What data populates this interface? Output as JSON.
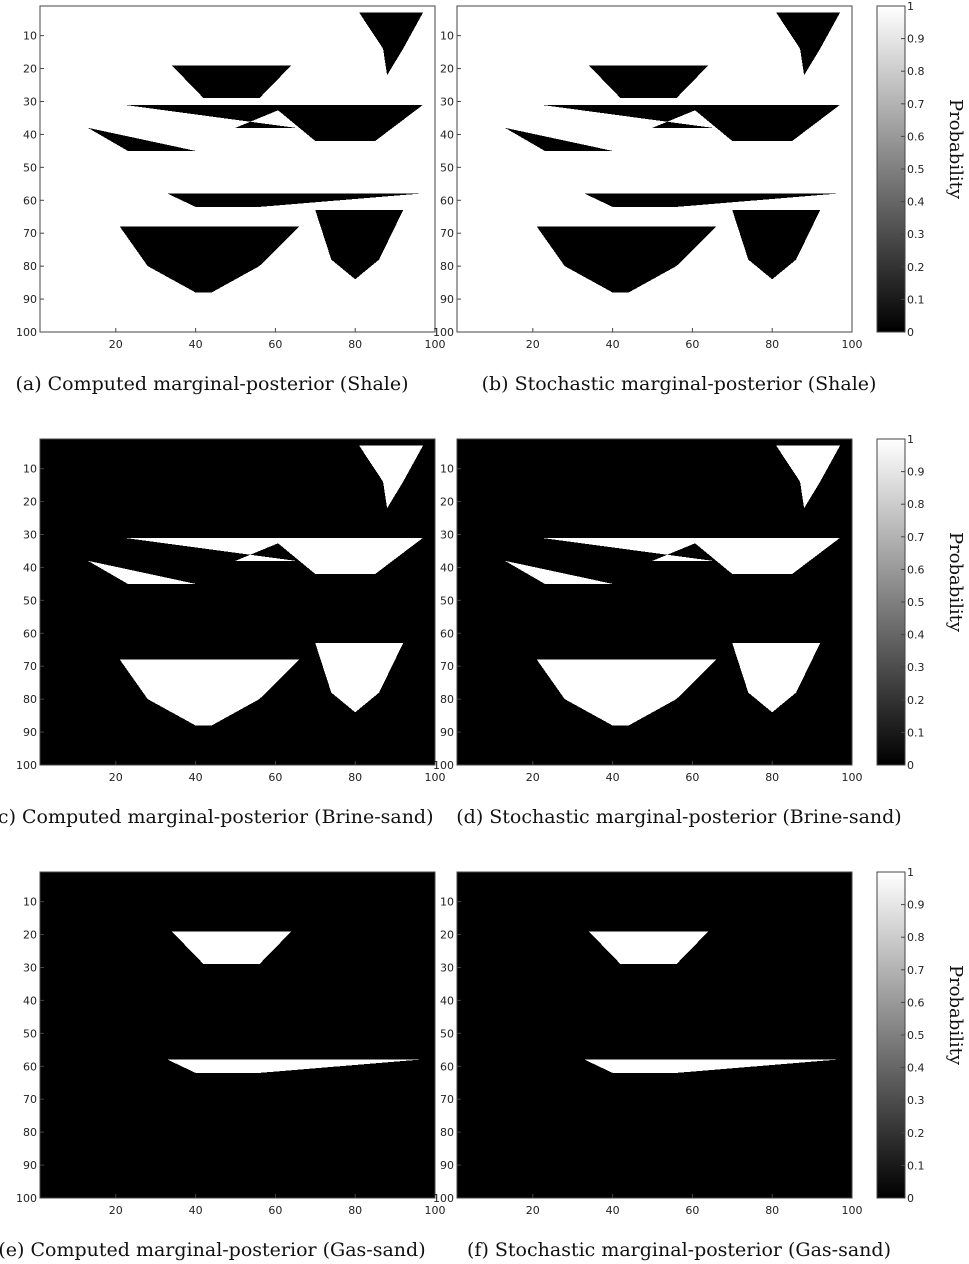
{
  "chart_data": {
    "type": "heatmap",
    "colormap": "gray",
    "x_ticks": [
      20,
      40,
      60,
      80,
      100
    ],
    "y_ticks": [
      10,
      20,
      30,
      40,
      50,
      60,
      70,
      80,
      90,
      100
    ],
    "xlim": [
      1,
      100
    ],
    "ylim": [
      1,
      100
    ],
    "colorbar": {
      "label": "Probability",
      "ticks": [
        "0",
        "0.1",
        "0.2",
        "0.3",
        "0.4",
        "0.5",
        "0.6",
        "0.7",
        "0.8",
        "0.9",
        "1"
      ],
      "range": [
        0,
        1
      ]
    },
    "bodies": [
      {
        "name": "top-right wedge",
        "rows": [
          [
            3,
            97,
            81,
            97
          ],
          [
            14,
            92,
            87,
            92
          ],
          [
            22,
            88,
            88,
            89
          ]
        ]
      },
      {
        "name": "small upper trapezoid",
        "rows": [
          [
            19,
            34,
            64,
            19
          ],
          [
            29,
            42,
            56,
            29
          ]
        ]
      },
      {
        "name": "left lens",
        "rows": [
          [
            31,
            22,
            64,
            31
          ],
          [
            38,
            65,
            50,
            38
          ],
          [
            38,
            13,
            13,
            38
          ],
          [
            45,
            23,
            40,
            49
          ]
        ]
      },
      {
        "name": "right bowl",
        "rows": [
          [
            31,
            59,
            97,
            31
          ],
          [
            42,
            70,
            85,
            48
          ]
        ]
      },
      {
        "name": "middle thin bar",
        "rows": [
          [
            58,
            33,
            96,
            58
          ],
          [
            62,
            40,
            56,
            62
          ]
        ]
      },
      {
        "name": "lower left bowl",
        "rows": [
          [
            68,
            21,
            66,
            68
          ],
          [
            80,
            28,
            56,
            80
          ],
          [
            88,
            40,
            44,
            88
          ]
        ]
      },
      {
        "name": "lower right bowl",
        "rows": [
          [
            63,
            70,
            92,
            63
          ],
          [
            78,
            74,
            86,
            78
          ],
          [
            84,
            80,
            80,
            84
          ]
        ]
      }
    ],
    "panels": [
      {
        "caption": "(a) Computed marginal-posterior (Shale)",
        "background": 1,
        "in_sand": 0,
        "gas": 0,
        "gas_bodies": [],
        "brine_bodies": [
          0,
          1,
          2,
          3,
          4,
          5,
          6
        ]
      },
      {
        "caption": "(b) Stochastic marginal-posterior (Shale)",
        "background": 1,
        "in_sand": 0,
        "gas": 0,
        "gas_bodies": [],
        "brine_bodies": [
          0,
          1,
          2,
          3,
          4,
          5,
          6
        ]
      },
      {
        "caption": "(c) Computed marginal-posterior (Brine-sand)",
        "background": 0,
        "in_sand": 1,
        "gas": 0,
        "gas_bodies": [
          1,
          4
        ],
        "brine_bodies": [
          0,
          2,
          3,
          5,
          6
        ]
      },
      {
        "caption": "(d) Stochastic marginal-posterior (Brine-sand)",
        "background": 0,
        "in_sand": 1,
        "gas": 0,
        "gas_bodies": [
          1,
          4
        ],
        "brine_bodies": [
          0,
          2,
          3,
          5,
          6
        ]
      },
      {
        "caption": "(e) Computed marginal-posterior (Gas-sand)",
        "background": 0,
        "in_sand": 0,
        "gas": 1,
        "gas_bodies": [
          1,
          4
        ],
        "brine_bodies": []
      },
      {
        "caption": "(f) Stochastic marginal-posterior (Gas-sand)",
        "background": 0,
        "in_sand": 0,
        "gas": 1,
        "gas_bodies": [
          1,
          4
        ],
        "brine_bodies": []
      }
    ]
  }
}
